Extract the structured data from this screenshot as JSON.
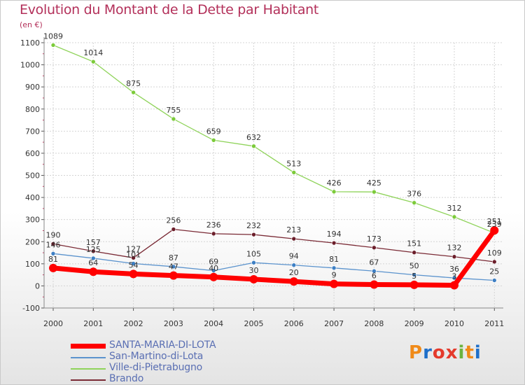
{
  "title": "Evolution du Montant de la Dette par Habitant",
  "unit": "(en €)",
  "logo": {
    "letters": [
      "P",
      "r",
      "o",
      "x",
      "i",
      "t",
      "i"
    ],
    "colors": [
      "#f08a18",
      "#1f6fc9",
      "#e43a2c",
      "#e43a2c",
      "#6cb33f",
      "#f08a18",
      "#1f6fc9"
    ]
  },
  "chart_data": {
    "type": "line",
    "title": "Evolution du Montant de la Dette par Habitant",
    "ylabel": "(en €)",
    "xlabel": "",
    "ylim": [
      -100,
      1100
    ],
    "yticks": [
      -100,
      0,
      100,
      200,
      300,
      400,
      500,
      600,
      700,
      800,
      900,
      1000,
      1100
    ],
    "x": [
      "2000",
      "2001",
      "2002",
      "2003",
      "2004",
      "2005",
      "2006",
      "2007",
      "2008",
      "2009",
      "2010",
      "2011"
    ],
    "grid": true,
    "legend": "bottom-left",
    "series": [
      {
        "name": "Ville-di-Pietrabugno",
        "color": "#8fd35a",
        "markerColor": "#7ccb3a",
        "values": [
          1089,
          1014,
          875,
          755,
          659,
          632,
          513,
          426,
          425,
          376,
          312,
          239
        ],
        "labels": [
          "1089",
          "1014",
          "875",
          "755",
          "659",
          "632",
          "513",
          "426",
          "425",
          "376",
          "312",
          "239"
        ]
      },
      {
        "name": "Brando",
        "color": "#7a2a35",
        "markerColor": "#6b1e2a",
        "values": [
          190,
          157,
          127,
          256,
          236,
          232,
          213,
          194,
          173,
          151,
          132,
          109
        ],
        "labels": [
          "190",
          "157",
          "127",
          "256",
          "236",
          "232",
          "213",
          "194",
          "173",
          "151",
          "132",
          "109"
        ]
      },
      {
        "name": "San-Martino-di-Lota",
        "color": "#5b93cd",
        "markerColor": "#3d7fc4",
        "values": [
          146,
          125,
          101,
          87,
          69,
          105,
          94,
          81,
          67,
          50,
          36,
          25
        ],
        "labels": [
          "146",
          "125",
          "101",
          "87",
          "69",
          "105",
          "94",
          "81",
          "67",
          "50",
          "36",
          "25"
        ]
      },
      {
        "name": "SANTA-MARIA-DI-LOTA",
        "color": "#ff0000",
        "markerColor": "#ff0000",
        "values": [
          81,
          64,
          54,
          47,
          40,
          30,
          20,
          9,
          6,
          5,
          3,
          251
        ],
        "labels": [
          "81",
          "64",
          "54",
          "47",
          "40",
          "30",
          "20",
          "9",
          "6",
          "5",
          "3",
          "251"
        ]
      }
    ]
  },
  "legend_items": [
    {
      "name": "SANTA-MARIA-DI-LOTA",
      "color": "#ff0000",
      "thick": true
    },
    {
      "name": "San-Martino-di-Lota",
      "color": "#5b93cd",
      "thick": false
    },
    {
      "name": "Ville-di-Pietrabugno",
      "color": "#8fd35a",
      "thick": false
    },
    {
      "name": "Brando",
      "color": "#7a2a35",
      "thick": false
    }
  ]
}
